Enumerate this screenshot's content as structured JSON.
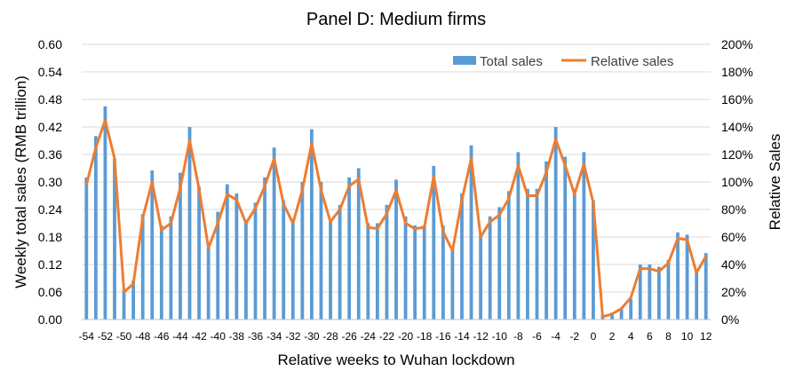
{
  "chart_data": {
    "type": "bar",
    "title": "Panel D: Medium firms",
    "xlabel": "Relative weeks to Wuhan lockdown",
    "ylabel": "Weekly total sales (RMB trillion)",
    "y2label": "Relative Sales",
    "ylim": [
      0,
      0.6
    ],
    "y2lim": [
      0,
      200
    ],
    "yticks": [
      "0.00",
      "0.06",
      "0.12",
      "0.18",
      "0.24",
      "0.30",
      "0.36",
      "0.42",
      "0.48",
      "0.54",
      "0.60"
    ],
    "y2ticks": [
      "0%",
      "20%",
      "40%",
      "60%",
      "80%",
      "100%",
      "120%",
      "140%",
      "160%",
      "180%",
      "200%"
    ],
    "xtick_labels": [
      "-54",
      "-52",
      "-50",
      "-48",
      "-46",
      "-44",
      "-42",
      "-40",
      "-38",
      "-36",
      "-34",
      "-32",
      "-30",
      "-28",
      "-26",
      "-24",
      "-22",
      "-20",
      "-18",
      "-16",
      "-14",
      "-12",
      "-10",
      "-8",
      "-6",
      "-4",
      "-2",
      "0",
      "2",
      "4",
      "6",
      "8",
      "10",
      "12"
    ],
    "grid": true,
    "legend_position": "top-right",
    "x": [
      -54,
      -53,
      -52,
      -51,
      -50,
      -49,
      -48,
      -47,
      -46,
      -45,
      -44,
      -43,
      -42,
      -41,
      -40,
      -39,
      -38,
      -37,
      -36,
      -35,
      -34,
      -33,
      -32,
      -31,
      -30,
      -29,
      -28,
      -27,
      -26,
      -25,
      -24,
      -23,
      -22,
      -21,
      -20,
      -19,
      -18,
      -17,
      -16,
      -15,
      -14,
      -13,
      -12,
      -11,
      -10,
      -9,
      -8,
      -7,
      -6,
      -5,
      -4,
      -3,
      -2,
      -1,
      0,
      1,
      2,
      3,
      4,
      5,
      6,
      7,
      8,
      9,
      10,
      11,
      12
    ],
    "series": [
      {
        "name": "Total sales",
        "kind": "bar",
        "axis": "left",
        "color": "#5b9bd5",
        "values": [
          0.31,
          0.4,
          0.465,
          0.35,
          0.065,
          0.085,
          0.23,
          0.325,
          0.205,
          0.225,
          0.32,
          0.42,
          0.29,
          0.165,
          0.235,
          0.295,
          0.275,
          0.215,
          0.255,
          0.31,
          0.375,
          0.26,
          0.215,
          0.3,
          0.415,
          0.3,
          0.215,
          0.25,
          0.31,
          0.33,
          0.21,
          0.21,
          0.25,
          0.305,
          0.225,
          0.205,
          0.205,
          0.335,
          0.205,
          0.155,
          0.275,
          0.38,
          0.185,
          0.225,
          0.245,
          0.28,
          0.365,
          0.285,
          0.285,
          0.345,
          0.42,
          0.355,
          0.285,
          0.365,
          0.26,
          0.01,
          0.015,
          0.025,
          0.045,
          0.12,
          0.12,
          0.115,
          0.13,
          0.19,
          0.185,
          0.105,
          0.145
        ]
      },
      {
        "name": "Relative sales",
        "kind": "line",
        "axis": "right",
        "color": "#ed7d31",
        "values": [
          98,
          125,
          145,
          117,
          20,
          26,
          74,
          100,
          65,
          70,
          96,
          130,
          95,
          52,
          70,
          91,
          87,
          70,
          81,
          97,
          117,
          84,
          70,
          94,
          128,
          94,
          71,
          80,
          97,
          102,
          67,
          66,
          77,
          94,
          70,
          66,
          67,
          104,
          64,
          50,
          87,
          117,
          60,
          71,
          76,
          88,
          112,
          90,
          90,
          107,
          131,
          112,
          91,
          113,
          85,
          2,
          4,
          8,
          16,
          37,
          37,
          35,
          41,
          59,
          58,
          34,
          46
        ]
      }
    ]
  }
}
